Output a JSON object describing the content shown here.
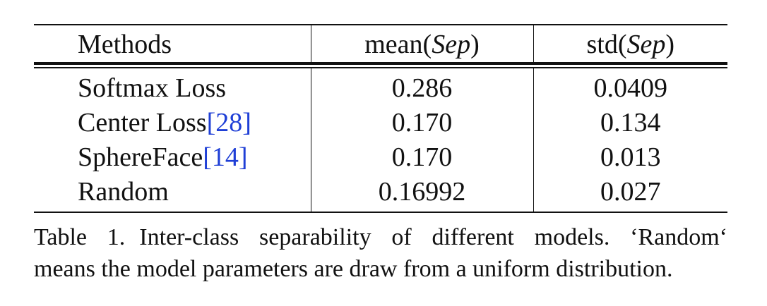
{
  "table": {
    "headers": {
      "method": "Methods",
      "mean_prefix": "mean(",
      "mean_var": "Sep",
      "mean_suffix": ")",
      "std_prefix": "std(",
      "std_var": "Sep",
      "std_suffix": ")"
    },
    "rows": [
      {
        "method": "Softmax Loss",
        "cite": "",
        "mean": "0.286",
        "std": "0.0409"
      },
      {
        "method": "Center Loss",
        "cite": "[28]",
        "mean": "0.170",
        "std": "0.134"
      },
      {
        "method": "SphereFace",
        "cite": "[14]",
        "mean": "0.170",
        "std": "0.013"
      },
      {
        "method": "Random",
        "cite": "",
        "mean": "0.16992",
        "std": "0.027"
      }
    ]
  },
  "caption": {
    "label": "Table 1.",
    "line1": "Inter-class separability of different models. ‘Random‘",
    "line2": "means the model parameters are draw from a uniform distribution."
  }
}
